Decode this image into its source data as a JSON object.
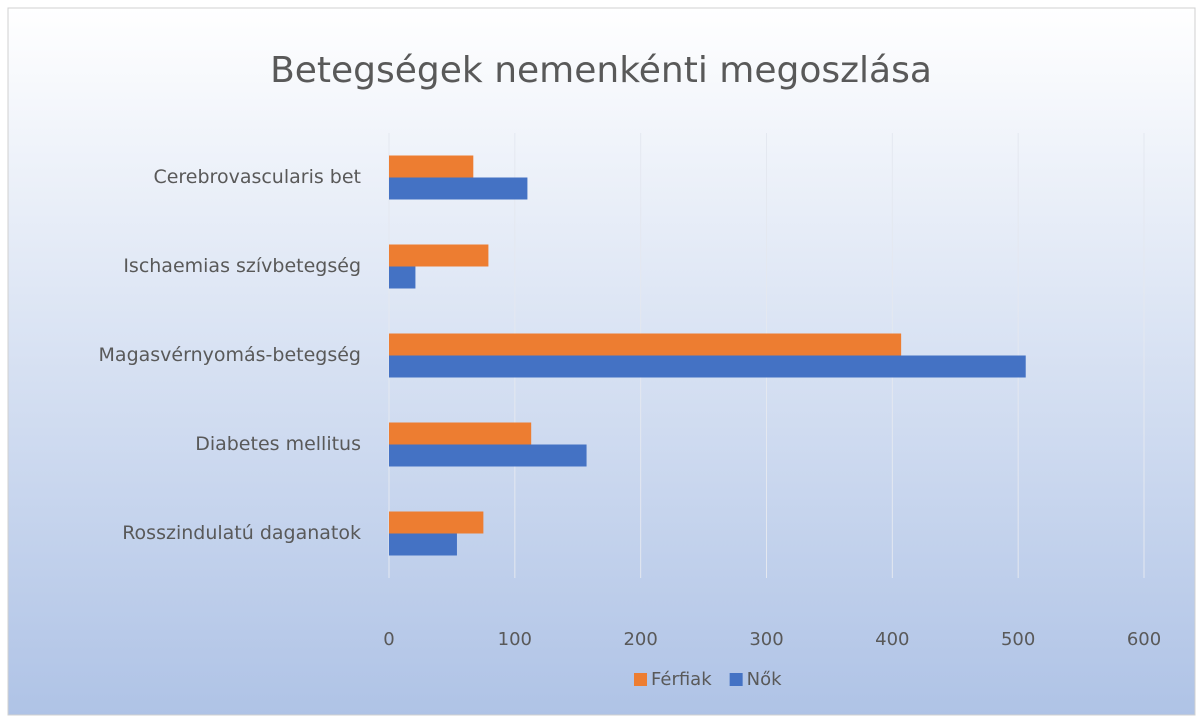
{
  "chart_data": {
    "type": "hbar",
    "title": "Betegségek nemenkénti  megoszlása",
    "categories": [
      "Cerebrovascularis bet",
      "Ischaemias szívbetegség",
      "Magasvérnyomás-betegség",
      "Diabetes mellitus",
      "Rosszindulatú daganatok"
    ],
    "series": [
      {
        "name": "Férfiak",
        "color": "#ed7d31",
        "values": [
          67,
          79,
          407,
          113,
          75
        ]
      },
      {
        "name": "Nők",
        "color": "#4472c4",
        "values": [
          110,
          21,
          506,
          157,
          54
        ]
      }
    ],
    "xlim": [
      0,
      600
    ],
    "xticks": [
      0,
      100,
      200,
      300,
      400,
      500,
      600
    ],
    "grid": true,
    "legend": "bottom"
  }
}
